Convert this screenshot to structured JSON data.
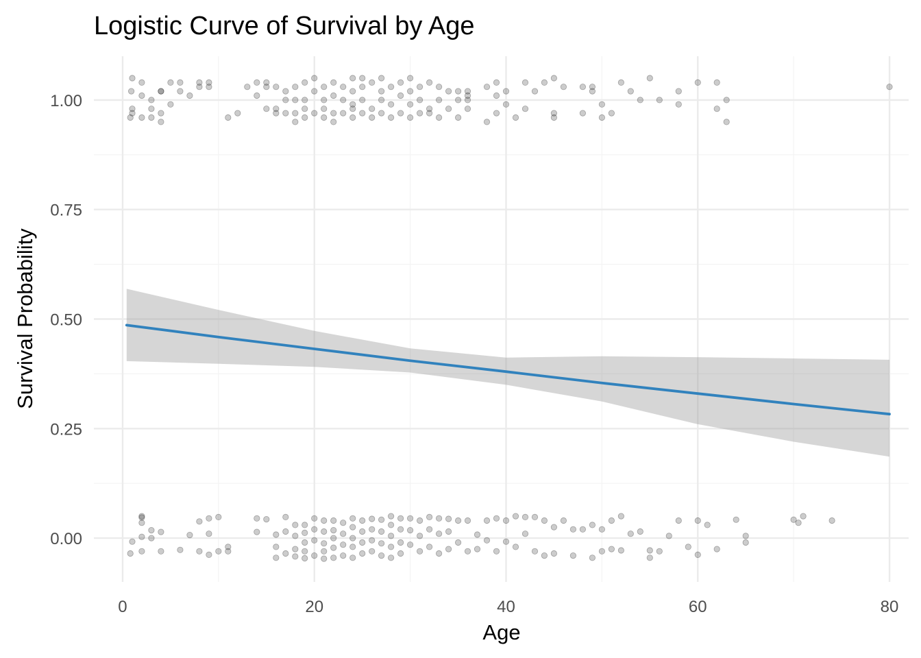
{
  "chart_data": {
    "type": "scatter",
    "title": "Logistic Curve of Survival by Age",
    "xlabel": "Age",
    "ylabel": "Survival Probability",
    "xlim": [
      -3,
      82
    ],
    "ylim": [
      -0.1,
      1.1
    ],
    "x_ticks": [
      0,
      20,
      40,
      60,
      80
    ],
    "x_tick_labels": [
      "0",
      "20",
      "40",
      "60",
      "80"
    ],
    "y_ticks": [
      0,
      0.25,
      0.5,
      0.75,
      1
    ],
    "y_tick_labels": [
      "0.00",
      "0.25",
      "0.50",
      "0.75",
      "1.00"
    ],
    "grid": true,
    "legend": "none",
    "colors": {
      "curve": "#3182bd",
      "ribbon": "#999999",
      "points": "#000000",
      "grid": "#ebebeb"
    },
    "fit": {
      "name": "",
      "x": [
        0.42,
        10,
        20,
        30,
        40,
        50,
        60,
        70,
        80
      ],
      "y": [
        0.486,
        0.459,
        0.432,
        0.405,
        0.38,
        0.354,
        0.33,
        0.306,
        0.283
      ],
      "lower": [
        0.404,
        0.398,
        0.391,
        0.378,
        0.35,
        0.312,
        0.26,
        0.22,
        0.186
      ],
      "upper": [
        0.569,
        0.521,
        0.473,
        0.433,
        0.412,
        0.415,
        0.413,
        0.41,
        0.407
      ]
    },
    "survived_points": {
      "name": "",
      "x": [
        0.8,
        0.9,
        1,
        1,
        1,
        2,
        2,
        2,
        3,
        3,
        3,
        4,
        4,
        4,
        4,
        5,
        5,
        6,
        6,
        7,
        8,
        8,
        9,
        9,
        11,
        12,
        13,
        14,
        14,
        15,
        15,
        15,
        16,
        16,
        16,
        17,
        17,
        17,
        18,
        18,
        18,
        18,
        19,
        19,
        19,
        19,
        20,
        20,
        20,
        21,
        21,
        21,
        21,
        22,
        22,
        22,
        22,
        23,
        23,
        23,
        24,
        24,
        24,
        24,
        24,
        25,
        25,
        25,
        25,
        26,
        26,
        26,
        27,
        27,
        27,
        27,
        28,
        28,
        28,
        29,
        29,
        29,
        30,
        30,
        30,
        30,
        31,
        31,
        31,
        32,
        32,
        32,
        33,
        33,
        33,
        34,
        34,
        35,
        35,
        35,
        36,
        36,
        36,
        36,
        38,
        38,
        39,
        39,
        39,
        40,
        40,
        41,
        42,
        42,
        43,
        44,
        45,
        45,
        45,
        46,
        48,
        48,
        49,
        49,
        50,
        50,
        51,
        52,
        53,
        54,
        55,
        56,
        58,
        58,
        60,
        62,
        62,
        63,
        63,
        80
      ],
      "y": [
        0.96,
        1.02,
        1.05,
        0.98,
        0.97,
        1.04,
        0.96,
        1.01,
        0.98,
        1.0,
        0.96,
        1.02,
        0.95,
        0.97,
        1.02,
        0.99,
        1.04,
        1.04,
        1.02,
        1.01,
        1.03,
        1.04,
        1.04,
        1.03,
        0.96,
        0.97,
        1.03,
        1.04,
        1.01,
        1.03,
        0.98,
        1.04,
        1.03,
        0.97,
        0.98,
        1.02,
        0.97,
        1.0,
        0.95,
        0.97,
        1.0,
        1.03,
        1.04,
        0.98,
        1.0,
        0.96,
        1.05,
        0.97,
        1.02,
        0.96,
        0.98,
        1.0,
        1.03,
        0.95,
        0.97,
        1.04,
        1.01,
        0.97,
        1.0,
        1.03,
        1.05,
        0.96,
        0.99,
        1.02,
        0.98,
        1.05,
        0.97,
        1.0,
        1.03,
        0.96,
        0.98,
        1.04,
        0.97,
        1.0,
        1.02,
        1.05,
        0.96,
        0.99,
        1.03,
        0.97,
        1.01,
        1.04,
        0.96,
        0.99,
        1.02,
        1.05,
        0.97,
        1.0,
        1.03,
        0.97,
        0.98,
        1.04,
        1.0,
        0.96,
        1.03,
        1.02,
        0.98,
        0.96,
        1.0,
        1.02,
        0.98,
        1.01,
        1.02,
        1.0,
        0.95,
        1.03,
        1.01,
        0.97,
        1.04,
        1.02,
        0.99,
        0.96,
        1.04,
        0.98,
        1.02,
        1.04,
        0.97,
        0.96,
        1.05,
        1.03,
        1.03,
        0.97,
        1.02,
        1.03,
        0.96,
        0.99,
        0.97,
        1.04,
        1.02,
        1.0,
        1.05,
        1.0,
        1.02,
        0.99,
        1.04,
        1.04,
        0.98,
        0.95,
        1.0,
        1.03
      ],
      "value": 1
    },
    "died_points": {
      "name": "",
      "x": [
        0.8,
        1,
        2,
        2,
        2,
        2,
        2,
        3,
        3,
        4,
        4,
        6,
        7,
        8,
        8,
        9,
        9,
        9,
        10,
        10,
        11,
        11,
        14,
        14,
        15,
        16,
        16,
        16,
        17,
        17,
        17,
        18,
        18,
        18,
        18,
        19,
        19,
        19,
        19,
        19,
        20,
        20,
        20,
        20,
        21,
        21,
        21,
        21,
        21,
        22,
        22,
        22,
        22,
        22,
        23,
        23,
        23,
        23,
        24,
        24,
        24,
        24,
        24,
        25,
        25,
        25,
        25,
        26,
        26,
        26,
        26,
        27,
        27,
        27,
        27,
        28,
        28,
        28,
        28,
        28,
        29,
        29,
        29,
        29,
        30,
        30,
        30,
        31,
        31,
        31,
        32,
        32,
        32,
        33,
        33,
        33,
        34,
        34,
        34,
        35,
        35,
        36,
        36,
        37,
        37,
        38,
        38,
        39,
        39,
        40,
        40,
        41,
        41,
        42,
        42,
        43,
        43,
        44,
        44,
        45,
        45,
        46,
        47,
        47,
        48,
        49,
        49,
        50,
        50,
        51,
        51,
        52,
        52,
        53,
        54,
        55,
        55,
        56,
        57,
        58,
        59,
        60,
        60,
        61,
        62,
        64,
        65,
        65,
        70,
        70.5,
        71,
        74
      ],
      "y": [
        -0.035,
        -0.008,
        0.05,
        0.035,
        0.003,
        -0.03,
        0.047,
        0.018,
        0.0,
        0.014,
        -0.03,
        -0.027,
        0.007,
        -0.03,
        0.038,
        0.045,
        0.01,
        -0.038,
        0.048,
        -0.03,
        -0.03,
        -0.02,
        0.045,
        0.014,
        0.043,
        -0.045,
        0.008,
        -0.02,
        0.048,
        0.015,
        -0.035,
        0.03,
        0.005,
        -0.025,
        -0.042,
        0.03,
        0.012,
        -0.01,
        -0.03,
        -0.046,
        0.045,
        0.02,
        -0.005,
        -0.04,
        0.04,
        0.015,
        -0.012,
        -0.03,
        -0.047,
        0.04,
        0.018,
        0.0,
        -0.022,
        -0.045,
        0.035,
        0.01,
        -0.015,
        -0.04,
        0.045,
        0.025,
        0.0,
        -0.02,
        -0.045,
        0.04,
        0.015,
        -0.01,
        -0.035,
        0.044,
        0.02,
        -0.005,
        -0.03,
        0.042,
        0.015,
        -0.012,
        -0.04,
        0.05,
        0.03,
        0.005,
        -0.02,
        -0.045,
        0.045,
        0.02,
        -0.01,
        -0.035,
        0.045,
        0.018,
        -0.015,
        0.04,
        0.005,
        -0.03,
        0.048,
        0.02,
        -0.02,
        0.045,
        0.01,
        -0.035,
        0.044,
        0.015,
        -0.025,
        0.04,
        -0.01,
        0.04,
        -0.03,
        0.008,
        -0.025,
        0.04,
        -0.005,
        0.045,
        -0.03,
        0.04,
        -0.008,
        0.05,
        -0.02,
        0.048,
        0.01,
        0.048,
        -0.03,
        0.04,
        -0.04,
        0.025,
        -0.035,
        0.04,
        0.02,
        -0.04,
        0.02,
        0.03,
        -0.045,
        0.02,
        -0.03,
        0.04,
        -0.025,
        0.05,
        -0.028,
        0.01,
        0.015,
        -0.028,
        -0.045,
        -0.03,
        0.005,
        0.04,
        -0.02,
        0.04,
        -0.038,
        0.03,
        -0.025,
        0.042,
        -0.01,
        0.005,
        0.042,
        0.035,
        0.05,
        0.04
      ],
      "value": 0
    }
  }
}
